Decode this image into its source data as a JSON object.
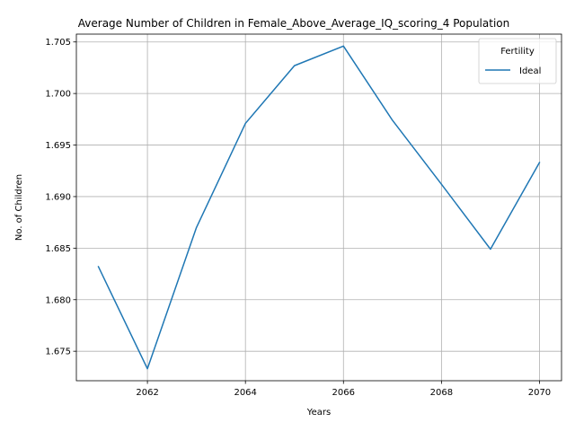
{
  "chart_data": {
    "type": "line",
    "title": "Average Number of Children in Female_Above_Average_IQ_scoring_4 Population",
    "xlabel": "Years",
    "ylabel": "No. of Children",
    "x": [
      2061,
      2062,
      2063,
      2064,
      2065,
      2066,
      2067,
      2068,
      2069,
      2070
    ],
    "series": [
      {
        "name": "Ideal",
        "color": "#1f77b4",
        "values": [
          1.6832,
          1.6733,
          1.687,
          1.6971,
          1.7027,
          1.7046,
          1.6974,
          1.6912,
          1.6849,
          1.6933
        ]
      }
    ],
    "xlim": [
      2060.55,
      2070.45
    ],
    "ylim": [
      1.67214,
      1.70576
    ],
    "x_ticks": [
      2062,
      2064,
      2066,
      2068,
      2070
    ],
    "x_tick_labels": [
      "2062",
      "2064",
      "2066",
      "2068",
      "2070"
    ],
    "y_ticks": [
      1.675,
      1.68,
      1.685,
      1.69,
      1.695,
      1.7,
      1.705
    ],
    "y_tick_labels": [
      "1.675",
      "1.680",
      "1.685",
      "1.690",
      "1.695",
      "1.700",
      "1.705"
    ],
    "grid": true,
    "legend": {
      "title": "Fertility",
      "position": "top-right",
      "entries": [
        "Ideal"
      ]
    }
  }
}
